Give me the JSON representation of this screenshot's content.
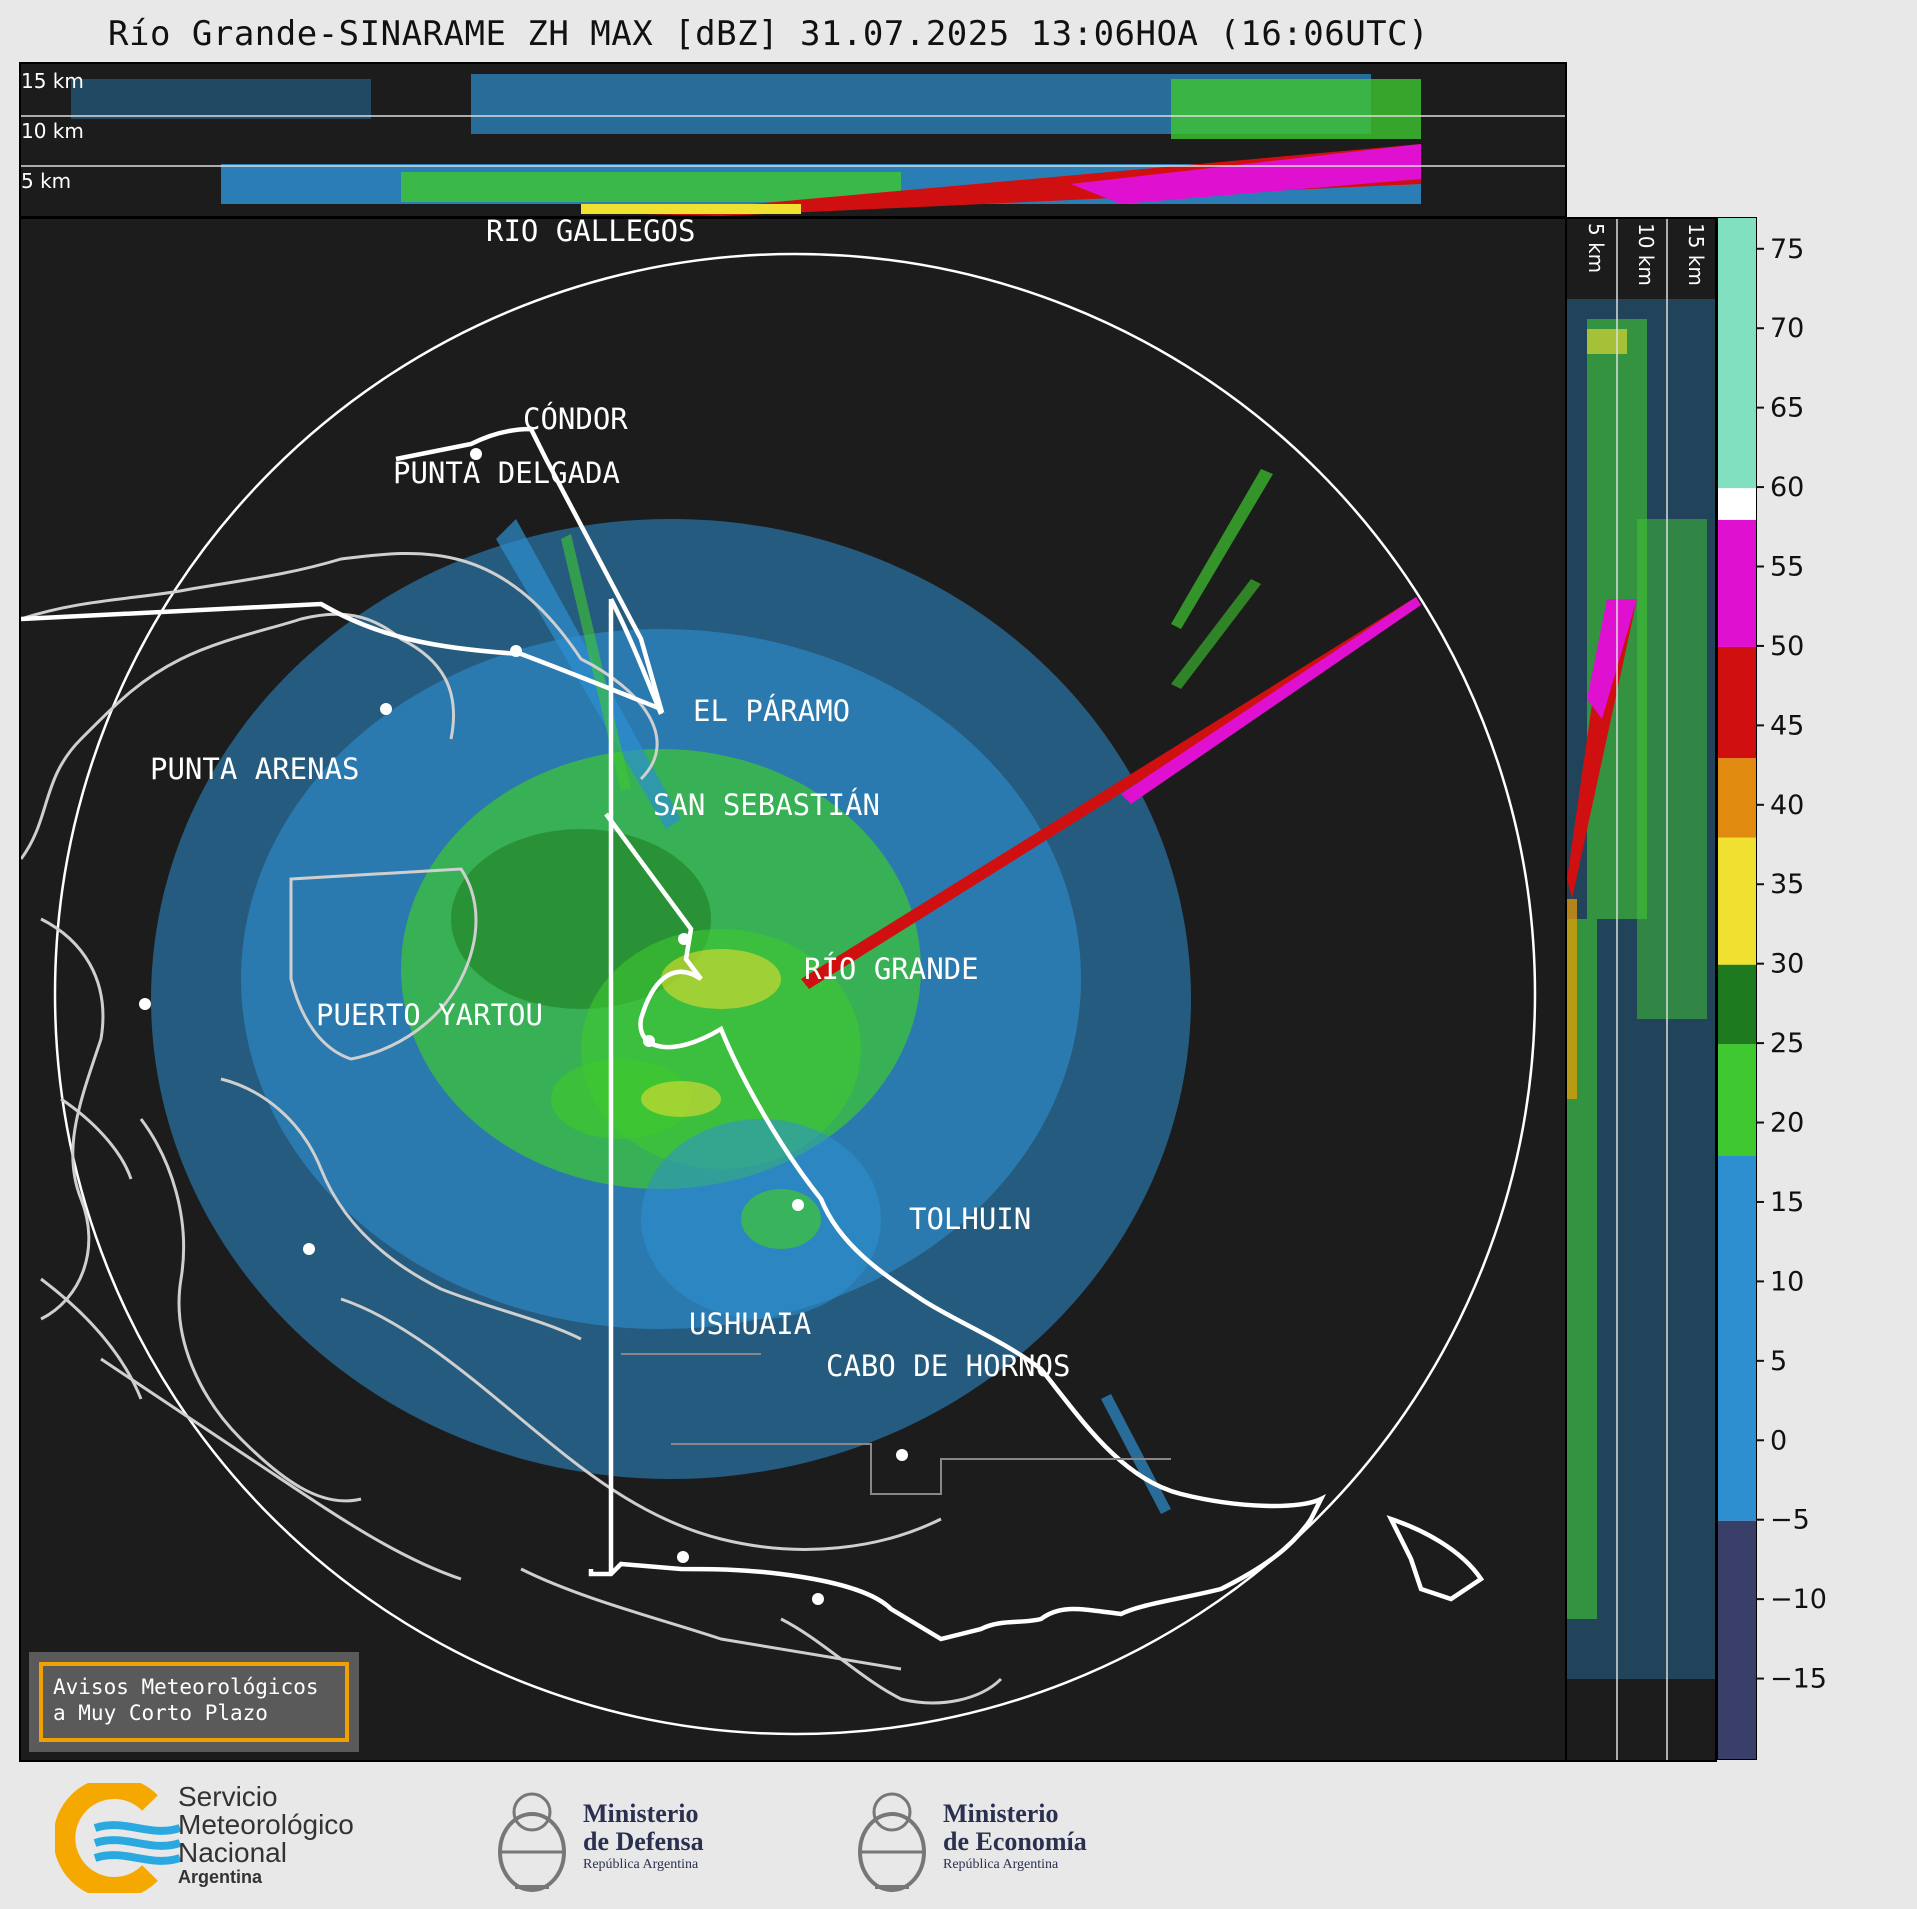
{
  "title": "Río Grande-SINARAME ZH MAX [dBZ] 31.07.2025 13:06HOA (16:06UTC)",
  "top_panel": {
    "height_labels": [
      "15 km",
      "10 km",
      "5 km"
    ]
  },
  "side_panel": {
    "height_labels": [
      "5 km",
      "10 km",
      "15 km"
    ]
  },
  "map": {
    "cities": [
      {
        "name": "RÍO GALLEGOS"
      },
      {
        "name": "CÓNDOR"
      },
      {
        "name": "PUNTA DELGADA"
      },
      {
        "name": "EL PÁRAMO"
      },
      {
        "name": "PUNTA ARENAS"
      },
      {
        "name": "SAN SEBASTIÁN"
      },
      {
        "name": "RÍO GRANDE"
      },
      {
        "name": "PUERTO YARTOU"
      },
      {
        "name": "TOLHUIN"
      },
      {
        "name": "USHUAIA"
      },
      {
        "name": "CABO DE HORNOS"
      }
    ],
    "avisos_line1": "Avisos Meteorológicos",
    "avisos_line2": "a Muy Corto Plazo"
  },
  "colorbar": {
    "unit": "dBZ",
    "ticks": [
      "75",
      "70",
      "65",
      "60",
      "55",
      "50",
      "45",
      "40",
      "35",
      "30",
      "25",
      "20",
      "15",
      "10",
      "5",
      "0",
      "−5",
      "−10",
      "−15"
    ],
    "tick_values": [
      75,
      70,
      65,
      60,
      55,
      50,
      45,
      40,
      35,
      30,
      25,
      20,
      15,
      10,
      5,
      0,
      -5,
      -10,
      -15
    ],
    "range": [
      -20,
      77
    ],
    "colors": {
      "low": "#3a3f6a",
      "blue": "#2e8fd0",
      "green": "#3fc830",
      "darkgreen": "#1e7a1e",
      "yellow": "#f0e030",
      "orange": "#e08a10",
      "red": "#d01010",
      "magenta": "#e010d0",
      "white": "#ffffff",
      "mint": "#80e0c0"
    }
  },
  "footer": {
    "smn": [
      "Servicio",
      "Meteorológico",
      "Nacional",
      "Argentina"
    ],
    "defensa": [
      "Ministerio",
      "de Defensa",
      "República Argentina"
    ],
    "economia": [
      "Ministerio",
      "de Economía",
      "República Argentina"
    ]
  }
}
